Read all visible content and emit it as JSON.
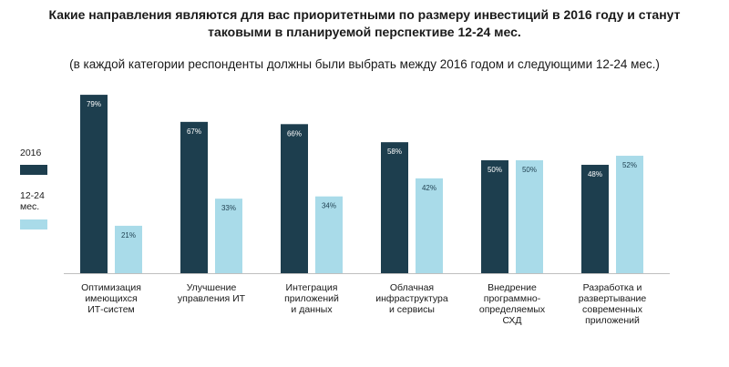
{
  "chart_data": {
    "type": "bar",
    "title_line1": "Какие направления являются для вас приоритетными по размеру инвестиций в 2016 году и станут",
    "title_line2": "таковыми в планируемой перспективе 12-24 мес.",
    "subtitle": "(в каждой категории респонденты должны были выбрать между 2016 годом и следующими 12-24 мес.)",
    "categories": [
      [
        "Оптимизация",
        "имеющихся",
        "ИТ-систем"
      ],
      [
        "Улучшение",
        "управления ИТ"
      ],
      [
        "Интеграция",
        "приложений",
        "и данных"
      ],
      [
        "Облачная",
        "инфраструктура",
        "и сервисы"
      ],
      [
        "Внедрение",
        "программно-",
        "определяемых",
        "СХД"
      ],
      [
        "Разработка и",
        "развертывание",
        "современных",
        "приложений"
      ]
    ],
    "series": [
      {
        "name": "2016",
        "color": "#1d3e4e",
        "label_color": "#ffffff",
        "values": [
          79,
          67,
          66,
          58,
          50,
          48
        ]
      },
      {
        "name": "12-24 мес.",
        "color": "#a9dbe9",
        "label_color": "#1d3e4e",
        "values": [
          21,
          33,
          34,
          42,
          50,
          52
        ]
      }
    ],
    "value_suffix": "%",
    "ylim": [
      0,
      100
    ],
    "grid": false,
    "legend_position": "left"
  }
}
